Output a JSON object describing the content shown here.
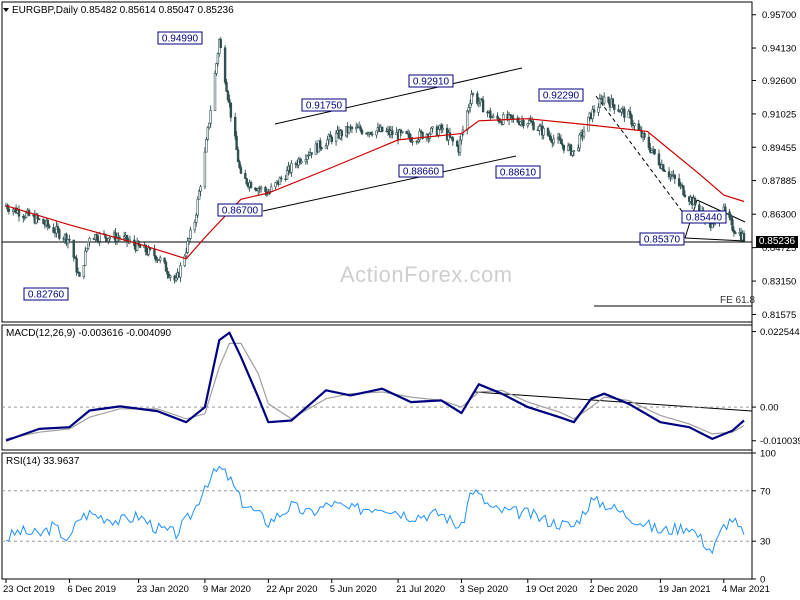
{
  "header": {
    "symbol": "EURGBP,Daily",
    "ohlc": "0.85482 0.85614 0.85047 0.85236"
  },
  "watermark": "ActionForex.com",
  "fe_label": "FE 61.8",
  "macd": {
    "label": "MACD(12,26,9) -0.003616 -0.004090"
  },
  "rsi": {
    "label": "RSI(14) 33.9637"
  },
  "colors": {
    "candle": "#2f4f4f",
    "ma": "#d00000",
    "macd": "#000080",
    "signal": "#a0a0a0",
    "rsi": "#1e90ff",
    "box_border": "#000080"
  },
  "chart_data": [
    {
      "type": "candlestick",
      "title": "EURGBP,Daily",
      "x_ticks": [
        "23 Oct 2019",
        "6 Dec 2019",
        "23 Jan 2020",
        "9 Mar 2020",
        "22 Apr 2020",
        "5 Jun 2020",
        "21 Jul 2020",
        "3 Sep 2020",
        "19 Oct 2020",
        "2 Dec 2020",
        "19 Jan 2021",
        "4 Mar 2021"
      ],
      "y_ticks": [
        "0.95700",
        "0.94130",
        "0.92600",
        "0.91025",
        "0.89455",
        "0.87885",
        "0.86300",
        "0.84725",
        "0.83150",
        "0.81575"
      ],
      "ylim": [
        0.8122,
        0.963
      ],
      "last_price": "0.85236",
      "annotations": [
        "0.94990",
        "0.91750",
        "0.92910",
        "0.92290",
        "0.82760",
        "0.86700",
        "0.88660",
        "0.88610",
        "0.85440",
        "0.85370"
      ],
      "close_anchors": [
        [
          "2019-10-23",
          0.867
        ],
        [
          "2019-11-15",
          0.86
        ],
        [
          "2019-12-06",
          0.851
        ],
        [
          "2019-12-13",
          0.832
        ],
        [
          "2019-12-20",
          0.853
        ],
        [
          "2020-01-10",
          0.852
        ],
        [
          "2020-02-05",
          0.843
        ],
        [
          "2020-02-18",
          0.831
        ],
        [
          "2020-03-02",
          0.86
        ],
        [
          "2020-03-09",
          0.891
        ],
        [
          "2020-03-19",
          0.945
        ],
        [
          "2020-04-03",
          0.88
        ],
        [
          "2020-04-22",
          0.873
        ],
        [
          "2020-05-15",
          0.89
        ],
        [
          "2020-06-05",
          0.899
        ],
        [
          "2020-06-18",
          0.903
        ],
        [
          "2020-07-10",
          0.902
        ],
        [
          "2020-07-30",
          0.899
        ],
        [
          "2020-08-20",
          0.903
        ],
        [
          "2020-09-01",
          0.894
        ],
        [
          "2020-09-10",
          0.92
        ],
        [
          "2020-09-25",
          0.908
        ],
        [
          "2020-10-19",
          0.907
        ],
        [
          "2020-11-05",
          0.899
        ],
        [
          "2020-11-20",
          0.892
        ],
        [
          "2020-12-02",
          0.91
        ],
        [
          "2020-12-11",
          0.918
        ],
        [
          "2020-12-28",
          0.909
        ],
        [
          "2021-01-19",
          0.887
        ],
        [
          "2021-02-08",
          0.871
        ],
        [
          "2021-02-24",
          0.857
        ],
        [
          "2021-03-04",
          0.864
        ],
        [
          "2021-03-10",
          0.857
        ],
        [
          "2021-03-18",
          0.852
        ]
      ],
      "series": [
        {
          "name": "",
          "points": [
            [
              "2019-10-23",
              0.867
            ],
            [
              "2019-12-06",
              0.858
            ],
            [
              "2020-01-23",
              0.849
            ],
            [
              "2020-02-25",
              0.842
            ],
            [
              "2020-03-09",
              0.852
            ],
            [
              "2020-04-03",
              0.87
            ],
            [
              "2020-04-22",
              0.873
            ],
            [
              "2020-06-05",
              0.885
            ],
            [
              "2020-07-21",
              0.898
            ],
            [
              "2020-09-03",
              0.901
            ],
            [
              "2020-09-15",
              0.907
            ],
            [
              "2020-10-19",
              0.908
            ],
            [
              "2020-12-02",
              0.905
            ],
            [
              "2021-01-10",
              0.902
            ],
            [
              "2021-01-19",
              0.897
            ],
            [
              "2021-02-15",
              0.882
            ],
            [
              "2021-03-04",
              0.872
            ],
            [
              "2021-03-18",
              0.869
            ]
          ]
        }
      ]
    },
    {
      "type": "line",
      "title": "MACD(12,26,9) -0.003616 -0.004090",
      "y_ticks": [
        "0.022544",
        "0.00",
        "-0.010039"
      ],
      "ylim": [
        -0.0128,
        0.0245
      ],
      "series": [
        {
          "name": "",
          "points": [
            [
              "2019-10-23",
              -0.01
            ],
            [
              "2019-11-15",
              -0.0065
            ],
            [
              "2019-12-06",
              -0.006
            ],
            [
              "2019-12-20",
              -0.001
            ],
            [
              "2020-01-10",
              0.0002
            ],
            [
              "2020-02-05",
              -0.0012
            ],
            [
              "2020-02-25",
              -0.0045
            ],
            [
              "2020-03-09",
              0.0
            ],
            [
              "2020-03-19",
              0.02
            ],
            [
              "2020-03-26",
              0.0222
            ],
            [
              "2020-04-03",
              0.015
            ],
            [
              "2020-04-15",
              0.003
            ],
            [
              "2020-04-22",
              -0.0045
            ],
            [
              "2020-05-08",
              -0.004
            ],
            [
              "2020-06-01",
              0.005
            ],
            [
              "2020-06-18",
              0.0035
            ],
            [
              "2020-07-10",
              0.0055
            ],
            [
              "2020-07-30",
              0.0015
            ],
            [
              "2020-08-20",
              0.002
            ],
            [
              "2020-09-03",
              -0.0018
            ],
            [
              "2020-09-15",
              0.0068
            ],
            [
              "2020-10-01",
              0.004
            ],
            [
              "2020-10-19",
              0.0
            ],
            [
              "2020-11-10",
              -0.003
            ],
            [
              "2020-11-20",
              -0.0045
            ],
            [
              "2020-12-02",
              0.0025
            ],
            [
              "2020-12-11",
              0.004
            ],
            [
              "2020-12-28",
              0.001
            ],
            [
              "2021-01-19",
              -0.0045
            ],
            [
              "2021-02-08",
              -0.006
            ],
            [
              "2021-02-24",
              -0.0095
            ],
            [
              "2021-03-10",
              -0.007
            ],
            [
              "2021-03-18",
              -0.004
            ]
          ]
        },
        {
          "name": "",
          "points": [
            [
              "2019-10-23",
              -0.0095
            ],
            [
              "2019-11-15",
              -0.0075
            ],
            [
              "2019-12-06",
              -0.0065
            ],
            [
              "2019-12-20",
              -0.003
            ],
            [
              "2020-01-10",
              -0.0005
            ],
            [
              "2020-02-05",
              -0.0005
            ],
            [
              "2020-02-25",
              -0.0035
            ],
            [
              "2020-03-09",
              -0.002
            ],
            [
              "2020-03-19",
              0.012
            ],
            [
              "2020-03-26",
              0.019
            ],
            [
              "2020-04-03",
              0.019
            ],
            [
              "2020-04-15",
              0.01
            ],
            [
              "2020-04-22",
              0.001
            ],
            [
              "2020-05-08",
              -0.0035
            ],
            [
              "2020-06-01",
              0.0025
            ],
            [
              "2020-06-18",
              0.004
            ],
            [
              "2020-07-10",
              0.0045
            ],
            [
              "2020-07-30",
              0.003
            ],
            [
              "2020-08-20",
              0.002
            ],
            [
              "2020-09-03",
              0.0
            ],
            [
              "2020-09-15",
              0.0045
            ],
            [
              "2020-10-01",
              0.005
            ],
            [
              "2020-10-19",
              0.0015
            ],
            [
              "2020-11-10",
              -0.0015
            ],
            [
              "2020-11-20",
              -0.0035
            ],
            [
              "2020-12-02",
              0.0
            ],
            [
              "2020-12-11",
              0.003
            ],
            [
              "2020-12-28",
              0.002
            ],
            [
              "2021-01-19",
              -0.0025
            ],
            [
              "2021-02-08",
              -0.005
            ],
            [
              "2021-02-24",
              -0.008
            ],
            [
              "2021-03-10",
              -0.0075
            ],
            [
              "2021-03-18",
              -0.0055
            ]
          ]
        }
      ]
    },
    {
      "type": "line",
      "title": "RSI(14) 33.9637",
      "y_ticks": [
        "100",
        "70",
        "30",
        "0"
      ],
      "ylim": [
        0,
        100
      ],
      "series": [
        {
          "name": "",
          "points": [
            [
              "2019-10-23",
              32
            ],
            [
              "2019-11-01",
              38
            ],
            [
              "2019-11-15",
              35
            ],
            [
              "2019-11-25",
              42
            ],
            [
              "2019-12-06",
              30
            ],
            [
              "2019-12-12",
              48
            ],
            [
              "2019-12-20",
              52
            ],
            [
              "2020-01-10",
              46
            ],
            [
              "2020-01-23",
              50
            ],
            [
              "2020-02-05",
              40
            ],
            [
              "2020-02-18",
              36
            ],
            [
              "2020-03-02",
              55
            ],
            [
              "2020-03-09",
              75
            ],
            [
              "2020-03-19",
              88
            ],
            [
              "2020-03-26",
              80
            ],
            [
              "2020-04-03",
              62
            ],
            [
              "2020-04-22",
              45
            ],
            [
              "2020-05-08",
              58
            ],
            [
              "2020-05-20",
              52
            ],
            [
              "2020-06-05",
              60
            ],
            [
              "2020-06-18",
              55
            ],
            [
              "2020-07-10",
              58
            ],
            [
              "2020-07-30",
              50
            ],
            [
              "2020-08-20",
              52
            ],
            [
              "2020-09-03",
              40
            ],
            [
              "2020-09-10",
              72
            ],
            [
              "2020-09-25",
              55
            ],
            [
              "2020-10-19",
              52
            ],
            [
              "2020-11-05",
              45
            ],
            [
              "2020-11-20",
              42
            ],
            [
              "2020-12-02",
              62
            ],
            [
              "2020-12-11",
              60
            ],
            [
              "2020-12-28",
              50
            ],
            [
              "2021-01-19",
              38
            ],
            [
              "2021-02-08",
              42
            ],
            [
              "2021-02-24",
              22
            ],
            [
              "2021-03-04",
              42
            ],
            [
              "2021-03-10",
              48
            ],
            [
              "2021-03-18",
              34
            ]
          ]
        }
      ]
    }
  ]
}
